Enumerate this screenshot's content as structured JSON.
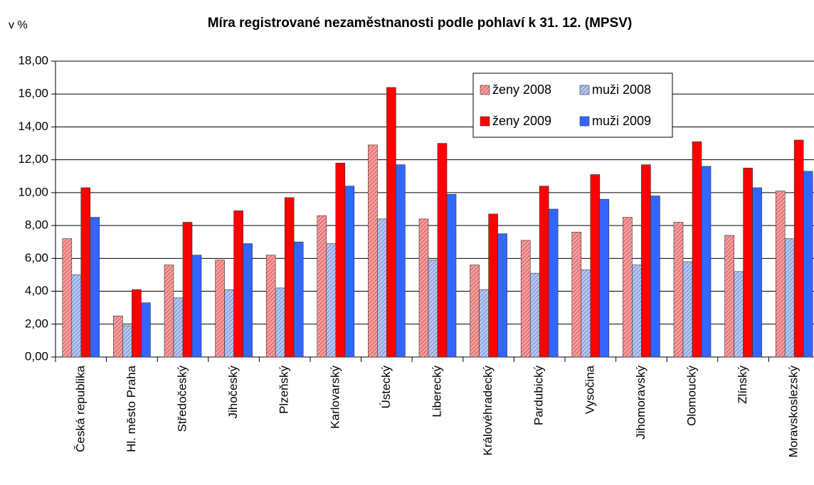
{
  "chart_data": {
    "type": "bar",
    "title": "Míra registrované nezaměstnanosti podle pohlaví k 31. 12. (MPSV)",
    "y_label": "v %",
    "categories": [
      "Česká republika",
      "Hl. město Praha",
      "Středočeský",
      "Jihočeský",
      "Plzeňský",
      "Karlovarský",
      "Ústecký",
      "Liberecký",
      "Královéhradecký",
      "Pardubický",
      "Vysočina",
      "Jihomoravský",
      "Olomoucký",
      "Zlínský",
      "Moravskoslezský"
    ],
    "series": [
      {
        "name": "ženy 2008",
        "color": "#f4a0a0",
        "hatch": "#d02020",
        "values": [
          7.2,
          2.5,
          5.6,
          5.9,
          6.2,
          8.6,
          12.9,
          8.4,
          5.6,
          7.1,
          7.6,
          8.5,
          8.2,
          7.4,
          10.1
        ]
      },
      {
        "name": "muži 2008",
        "color": "#b8c8f0",
        "hatch": "#4060c0",
        "values": [
          5.0,
          1.9,
          3.6,
          4.1,
          4.2,
          6.9,
          8.4,
          5.9,
          4.1,
          5.1,
          5.3,
          5.6,
          5.8,
          5.2,
          7.2
        ]
      },
      {
        "name": "ženy 2009",
        "color": "#ff0000",
        "values": [
          10.3,
          4.1,
          8.2,
          8.9,
          9.7,
          11.8,
          16.4,
          13.0,
          8.7,
          10.4,
          11.1,
          11.7,
          13.1,
          11.5,
          13.2
        ]
      },
      {
        "name": "muži 2009",
        "color": "#3366ff",
        "values": [
          8.5,
          3.3,
          6.2,
          6.9,
          7.0,
          10.4,
          11.7,
          9.9,
          7.5,
          9.0,
          9.6,
          9.8,
          11.6,
          10.3,
          11.3
        ]
      }
    ],
    "ylim": [
      0,
      18
    ],
    "yticks": [
      {
        "value": 0,
        "label": "0,00"
      },
      {
        "value": 2,
        "label": "2,00"
      },
      {
        "value": 4,
        "label": "4,00"
      },
      {
        "value": 6,
        "label": "6,00"
      },
      {
        "value": 8,
        "label": "8,00"
      },
      {
        "value": 10,
        "label": "10,00"
      },
      {
        "value": 12,
        "label": "12,00"
      },
      {
        "value": 14,
        "label": "14,00"
      },
      {
        "value": 16,
        "label": "16,00"
      },
      {
        "value": 18,
        "label": "18,00"
      }
    ],
    "grid": true,
    "legend_columns": 2
  }
}
